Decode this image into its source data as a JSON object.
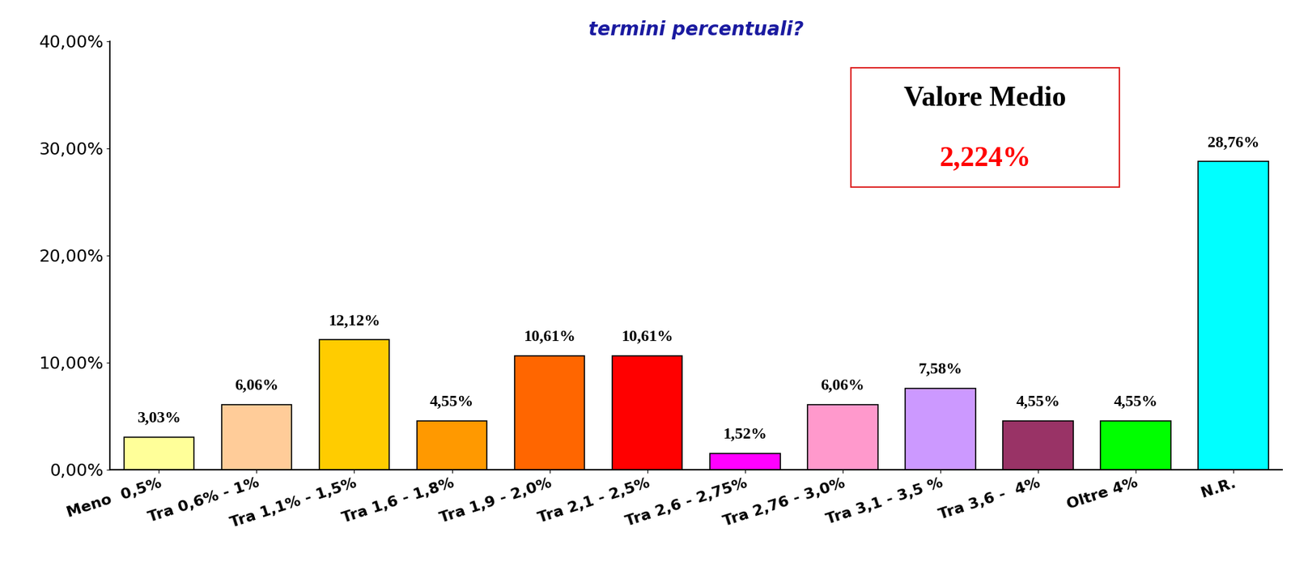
{
  "chart_data": {
    "type": "bar",
    "title": "termini percentuali?",
    "categories": [
      "Meno  0,5%",
      "Tra 0,6% - 1%",
      "Tra 1,1% - 1,5%",
      "Tra 1,6 - 1,8%",
      "Tra 1,9 - 2,0%",
      "Tra 2,1 - 2,5%",
      "Tra 2,6 - 2,75%",
      "Tra 2,76 - 3,0%",
      "Tra 3,1 - 3,5 %",
      "Tra 3,6 -  4%",
      "Oltre 4%",
      "N.R."
    ],
    "values": [
      3.03,
      6.06,
      12.12,
      4.55,
      10.61,
      10.61,
      1.52,
      6.06,
      7.58,
      4.55,
      4.55,
      28.76
    ],
    "value_labels": [
      "3,03%",
      "6,06%",
      "12,12%",
      "4,55%",
      "10,61%",
      "10,61%",
      "1,52%",
      "6,06%",
      "7,58%",
      "4,55%",
      "4,55%",
      "28,76%"
    ],
    "colors": [
      "#FFFF99",
      "#FFCC99",
      "#FFCC00",
      "#FF9900",
      "#FF6600",
      "#FF0000",
      "#FF00FF",
      "#FF99CC",
      "#CC99FF",
      "#993366",
      "#00FF00",
      "#00FFFF"
    ],
    "ylim": [
      0,
      40
    ],
    "yticks": [
      {
        "value": 0,
        "label": "0,00%"
      },
      {
        "value": 10,
        "label": "10,00%"
      },
      {
        "value": 20,
        "label": "20,00%"
      },
      {
        "value": 30,
        "label": "30,00%"
      },
      {
        "value": 40,
        "label": "40,00%"
      }
    ],
    "annotations": [
      "Valore Medio",
      "2,224%"
    ],
    "data_labels": true,
    "grid": false
  }
}
